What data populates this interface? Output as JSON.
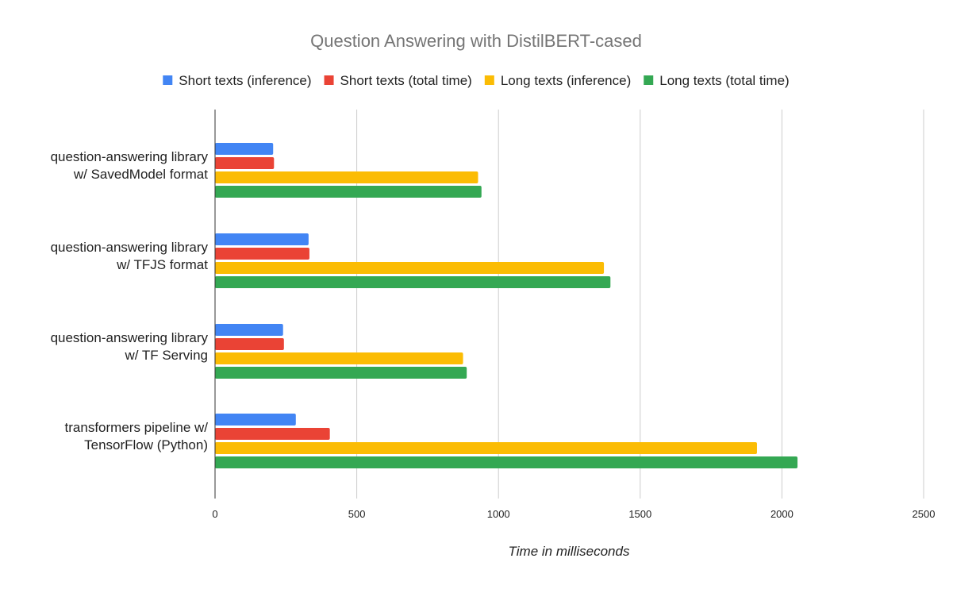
{
  "chart_data": {
    "type": "bar",
    "orientation": "horizontal",
    "title": "Question Answering with DistilBERT-cased",
    "xlabel": "Time in milliseconds",
    "ylabel": "",
    "xlim": [
      0,
      2500
    ],
    "xticks": [
      0,
      500,
      1000,
      1500,
      2000,
      2500
    ],
    "grid": true,
    "legend_position": "top",
    "categories": [
      [
        "question-answering library",
        "w/ SavedModel format"
      ],
      [
        "question-answering library",
        "w/ TFJS format"
      ],
      [
        "question-answering library",
        "w/ TF Serving"
      ],
      [
        "transformers pipeline w/",
        "TensorFlow (Python)"
      ]
    ],
    "series": [
      {
        "name": "Short texts (inference)",
        "color": "#4285f4",
        "values": [
          205,
          330,
          240,
          285
        ]
      },
      {
        "name": "Short texts (total time)",
        "color": "#ea4335",
        "values": [
          208,
          333,
          243,
          405
        ]
      },
      {
        "name": "Long texts (inference)",
        "color": "#fbbc04",
        "values": [
          928,
          1372,
          875,
          1912
        ]
      },
      {
        "name": "Long texts (total time)",
        "color": "#34a853",
        "values": [
          940,
          1395,
          888,
          2055
        ]
      }
    ]
  }
}
